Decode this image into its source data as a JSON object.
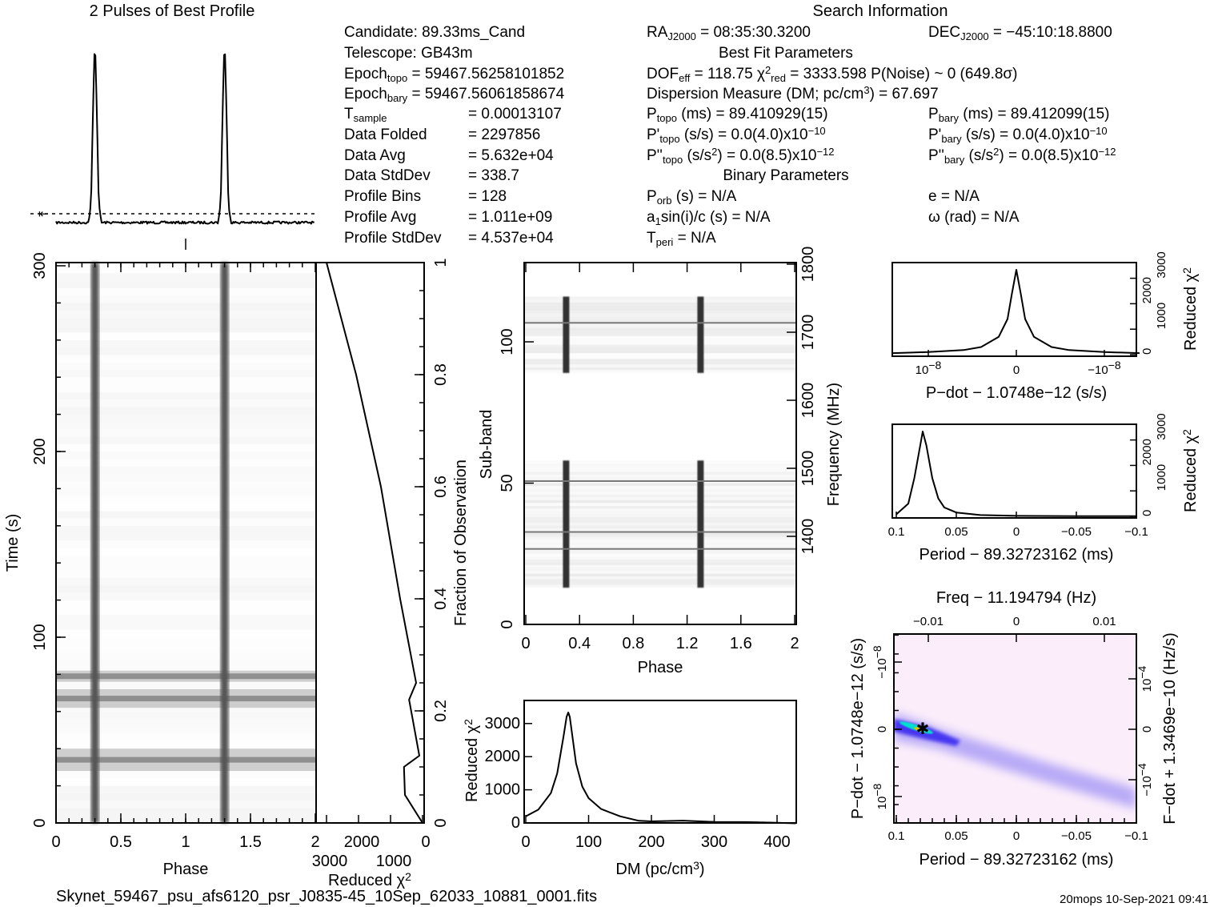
{
  "profile_title": "2 Pulses of Best Profile",
  "search_title": "Search Information",
  "info": {
    "candidate": [
      {
        "t": "Candidate:  89.33ms_Cand"
      }
    ],
    "telescope": [
      {
        "t": "Telescope:  GB43m"
      }
    ],
    "epoch_topo": [
      {
        "t": "Epoch"
      },
      {
        "t": "topo",
        "s": "sub"
      },
      {
        "t": " = 59467.56258101852"
      }
    ],
    "epoch_bary": [
      {
        "t": "Epoch"
      },
      {
        "t": "bary",
        "s": "sub"
      },
      {
        "t": " = 59467.56061858674"
      }
    ],
    "t_sample": {
      "label": [
        {
          "t": "T"
        },
        {
          "t": "sample",
          "s": "sub"
        }
      ],
      "value": [
        {
          "t": "=   0.00013107"
        }
      ]
    },
    "data_folded": {
      "label": [
        {
          "t": "Data Folded"
        }
      ],
      "value": [
        {
          "t": "=   2297856"
        }
      ]
    },
    "data_avg": {
      "label": [
        {
          "t": "Data Avg"
        }
      ],
      "value": [
        {
          "t": "=   5.632e+04"
        }
      ]
    },
    "data_stddev": {
      "label": [
        {
          "t": "Data StdDev"
        }
      ],
      "value": [
        {
          "t": "=   338.7"
        }
      ]
    },
    "profile_bins": {
      "label": [
        {
          "t": "Profile Bins"
        }
      ],
      "value": [
        {
          "t": "=   128"
        }
      ]
    },
    "profile_avg": {
      "label": [
        {
          "t": "Profile Avg"
        }
      ],
      "value": [
        {
          "t": "=   1.011e+09"
        }
      ]
    },
    "profile_stddev": {
      "label": [
        {
          "t": "Profile StdDev"
        }
      ],
      "value": [
        {
          "t": "=   4.537e+04"
        }
      ]
    },
    "ra": [
      {
        "t": "RA"
      },
      {
        "t": "J2000",
        "s": "sub"
      },
      {
        "t": " = 08:35:30.3200"
      }
    ],
    "dec": [
      {
        "t": "DEC"
      },
      {
        "t": "J2000",
        "s": "sub"
      },
      {
        "t": " = −45:10:18.8800"
      }
    ],
    "best_fit_heading": [
      {
        "t": "Best Fit Parameters"
      }
    ],
    "dof_line": [
      {
        "t": "DOF"
      },
      {
        "t": "eff",
        "s": "sub"
      },
      {
        "t": " = 118.75  χ"
      },
      {
        "t": "2",
        "s": "sup"
      },
      {
        "t": "red",
        "s": "sub"
      },
      {
        "t": " = 3333.598   P(Noise) ~ 0    (649.8σ)"
      }
    ],
    "dm_line": [
      {
        "t": "Dispersion Measure (DM; pc/cm"
      },
      {
        "t": "3",
        "s": "sup"
      },
      {
        "t": ") = 67.697"
      }
    ],
    "p_topo": [
      {
        "t": "P"
      },
      {
        "t": "topo",
        "s": "sub"
      },
      {
        "t": " (ms) =  89.410929(15)"
      }
    ],
    "pd_topo": [
      {
        "t": "P'"
      },
      {
        "t": "topo",
        "s": "sub"
      },
      {
        "t": " (s/s) = 0.0(4.0)x10"
      },
      {
        "t": "−10",
        "s": "sup"
      }
    ],
    "pdd_topo": [
      {
        "t": "P''"
      },
      {
        "t": "topo",
        "s": "sub"
      },
      {
        "t": " (s/s"
      },
      {
        "t": "2",
        "s": "sup"
      },
      {
        "t": ") = 0.0(8.5)x10"
      },
      {
        "t": "−12",
        "s": "sup"
      }
    ],
    "p_bary": [
      {
        "t": "P"
      },
      {
        "t": "bary",
        "s": "sub"
      },
      {
        "t": " (ms) =  89.412099(15)"
      }
    ],
    "pd_bary": [
      {
        "t": "P'"
      },
      {
        "t": "bary",
        "s": "sub"
      },
      {
        "t": " (s/s) = 0.0(4.0)x10"
      },
      {
        "t": "−10",
        "s": "sup"
      }
    ],
    "pdd_bary": [
      {
        "t": "P''"
      },
      {
        "t": "bary",
        "s": "sub"
      },
      {
        "t": " (s/s"
      },
      {
        "t": "2",
        "s": "sup"
      },
      {
        "t": ") = 0.0(8.5)x10"
      },
      {
        "t": "−12",
        "s": "sup"
      }
    ],
    "binary_heading": [
      {
        "t": "Binary Parameters"
      }
    ],
    "p_orb": [
      {
        "t": "P"
      },
      {
        "t": "orb",
        "s": "sub"
      },
      {
        "t": " (s) = N/A"
      }
    ],
    "a1": [
      {
        "t": "a"
      },
      {
        "t": "1",
        "s": "sub"
      },
      {
        "t": "sin(i)/c (s) = N/A"
      }
    ],
    "t_peri": [
      {
        "t": "T"
      },
      {
        "t": "peri",
        "s": "sub"
      },
      {
        "t": " = N/A"
      }
    ],
    "e": [
      {
        "t": "e = N/A"
      }
    ],
    "omega": [
      {
        "t": "ω (rad) = N/A"
      }
    ]
  },
  "footer": {
    "filename": "Skynet_59467_psu_afs6120_psr_J0835-45_10Sep_62033_10881_0001.fits",
    "stamp": "20mops 10-Sep-2021 09:41"
  },
  "colors": {
    "image_bg": "#fbeefa",
    "band": "#3a2cf0",
    "core": "#00e0d0",
    "peak": "#e0c000"
  },
  "chart_data": [
    {
      "id": "profile",
      "type": "line",
      "title": "2 Pulses of Best Profile",
      "phase": [
        0,
        0.25,
        0.27,
        0.285,
        0.3,
        0.315,
        0.33,
        0.35,
        1.0
      ],
      "intensity": [
        0,
        0,
        0.1,
        0.6,
        1.0,
        0.6,
        0.1,
        0,
        0
      ],
      "pulses_shown": 2
    },
    {
      "id": "time_phase",
      "type": "heatmap",
      "xlabel": "Phase",
      "ylabel": "Time (s)",
      "xticks": [
        0,
        0.5,
        1,
        1.5,
        2
      ],
      "xticklabels": [
        "0",
        "0.5",
        "1",
        "1.5",
        "2"
      ],
      "yticks": [
        0,
        100,
        200,
        300
      ],
      "yticklabels": [
        "0",
        "100",
        "200",
        "300"
      ],
      "pulse_phases": [
        0.3,
        1.3
      ],
      "bright_intervals_s": [
        [
          28,
          40
        ],
        [
          62,
          72
        ],
        [
          76,
          82
        ]
      ]
    },
    {
      "id": "chi2_vs_fraction",
      "type": "line",
      "xlabel": "Reduced χ",
      "xlabel_sup": "2",
      "ylabel": "Fraction of Observation",
      "xticks": [
        3000,
        2000,
        1000,
        0
      ],
      "xticklabels": [
        "3000",
        "2000",
        "1000",
        "0"
      ],
      "yticks": [
        0,
        0.2,
        0.4,
        0.6,
        0.8,
        1
      ],
      "yticklabels": [
        "0",
        "0.2",
        "0.4",
        "0.6",
        "0.8",
        "1"
      ],
      "fraction": [
        0,
        0.05,
        0.1,
        0.12,
        0.22,
        0.25,
        0.4,
        0.6,
        0.8,
        1.0
      ],
      "chi2": [
        0,
        550,
        580,
        100,
        420,
        200,
        700,
        1300,
        2075,
        3000
      ]
    },
    {
      "id": "subbands",
      "type": "heatmap",
      "xlabel": "Phase",
      "ylabel": "Sub-band",
      "y2label": "Frequency (MHz)",
      "xticks": [
        0,
        0.4,
        0.8,
        1.2,
        1.6,
        2
      ],
      "xticklabels": [
        "0",
        "0.4",
        "0.8",
        "1.2",
        "1.6",
        "2"
      ],
      "yticks": [
        0,
        50,
        100
      ],
      "yticklabels": [
        "0",
        "50",
        "100"
      ],
      "y2ticks": [
        1400,
        1500,
        1600,
        1700,
        1800
      ],
      "y2ticklabels": [
        "1400",
        "1500",
        "1600",
        "1700",
        "1800"
      ],
      "active_subbands": [
        [
          13,
          58
        ],
        [
          89,
          116
        ]
      ],
      "pulse_phases": [
        0.3,
        1.3
      ]
    },
    {
      "id": "dm",
      "type": "line",
      "xlabel": "DM (pc/cm",
      "xlabel_sup": "3",
      "xlabel_end": ")",
      "ylabel": "Reduced χ",
      "ylabel_sup": "2",
      "xticks": [
        0,
        100,
        200,
        300,
        400
      ],
      "xticklabels": [
        "0",
        "100",
        "200",
        "300",
        "400"
      ],
      "yticks": [
        0,
        1000,
        2000,
        3000
      ],
      "yticklabels": [
        "0",
        "1000",
        "2000",
        "3000"
      ],
      "x": [
        0,
        20,
        40,
        50,
        60,
        65,
        67.7,
        70,
        75,
        80,
        90,
        100,
        120,
        150,
        180,
        200,
        250,
        300,
        350,
        400,
        430
      ],
      "y": [
        200,
        400,
        900,
        1500,
        2600,
        3200,
        3333,
        3200,
        2500,
        1800,
        1100,
        750,
        420,
        200,
        80,
        60,
        70,
        40,
        20,
        10,
        10
      ]
    },
    {
      "id": "pdot",
      "type": "line",
      "xlabel": "P−dot − 1.0748e−12 (s/s)",
      "ylabel": "Reduced χ",
      "ylabel_sup": "2",
      "xticks": [
        1e-08,
        0,
        -1e-08
      ],
      "xticklabels": [
        {
          "t": "10",
          "sup": "−8"
        },
        {
          "t": "0"
        },
        {
          "t": "−10",
          "sup": "−8"
        }
      ],
      "yticks": [
        0,
        1000,
        2000,
        3000
      ],
      "yticklabels": [
        "0",
        "1000",
        "2000",
        "3000"
      ],
      "x": [
        -1.4e-08,
        -1e-08,
        -6e-09,
        -4e-09,
        -2e-09,
        -1e-09,
        -5e-10,
        0,
        5e-10,
        1e-09,
        2e-09,
        4e-09,
        6e-09,
        1e-08,
        1.4e-08
      ],
      "y": [
        60,
        100,
        180,
        300,
        700,
        1400,
        2400,
        3333,
        2400,
        1400,
        700,
        300,
        180,
        100,
        60
      ]
    },
    {
      "id": "period",
      "type": "line",
      "xlabel": "Period − 89.32723162 (ms)",
      "ylabel": "Reduced χ",
      "ylabel_sup": "2",
      "xticks": [
        0.1,
        0.05,
        0,
        -0.05,
        -0.1
      ],
      "xticklabels": [
        "0.1",
        "0.05",
        "0",
        "−0.05",
        "−0.1"
      ],
      "yticks": [
        0,
        1000,
        2000,
        3000
      ],
      "yticklabels": [
        "0",
        "1000",
        "2000",
        "3000"
      ],
      "x": [
        0.1,
        0.09,
        0.085,
        0.08,
        0.078,
        0.075,
        0.07,
        0.065,
        0.06,
        0.05,
        0.03,
        0,
        -0.05,
        -0.1
      ],
      "y": [
        80,
        500,
        1500,
        2800,
        3333,
        2800,
        1500,
        700,
        350,
        150,
        50,
        20,
        10,
        5
      ]
    },
    {
      "id": "p_pdot",
      "type": "heatmap",
      "xlabel": "Period − 89.32723162 (ms)",
      "x2label": "Freq − 11.194794 (Hz)",
      "ylabel": "P−dot − 1.0748e−12 (s/s)",
      "y2label": "F−dot + 1.3469e−10 (Hz/s)",
      "xticks": [
        0.1,
        0.05,
        0,
        -0.05,
        -0.1
      ],
      "xticklabels": [
        "0.1",
        "0.05",
        "0",
        "−0.05",
        "−0.1"
      ],
      "x2ticks": [
        -0.01,
        0,
        0.01
      ],
      "x2ticklabels": [
        "−0.01",
        "0",
        "0.01"
      ],
      "yticks": [
        -1e-08,
        0,
        1e-08
      ],
      "yticklabels": [
        {
          "t": "−10",
          "sup": "−8"
        },
        {
          "t": "0"
        },
        {
          "t": "10",
          "sup": "−8"
        }
      ],
      "y2ticks": [
        0.0001,
        0,
        -0.0001
      ],
      "y2ticklabels": [
        {
          "t": "10",
          "sup": "−4"
        },
        {
          "t": "0"
        },
        {
          "t": "−10",
          "sup": "−4"
        }
      ],
      "best_period_offset_ms": 0.078,
      "best_pdot_offset": 0
    }
  ]
}
